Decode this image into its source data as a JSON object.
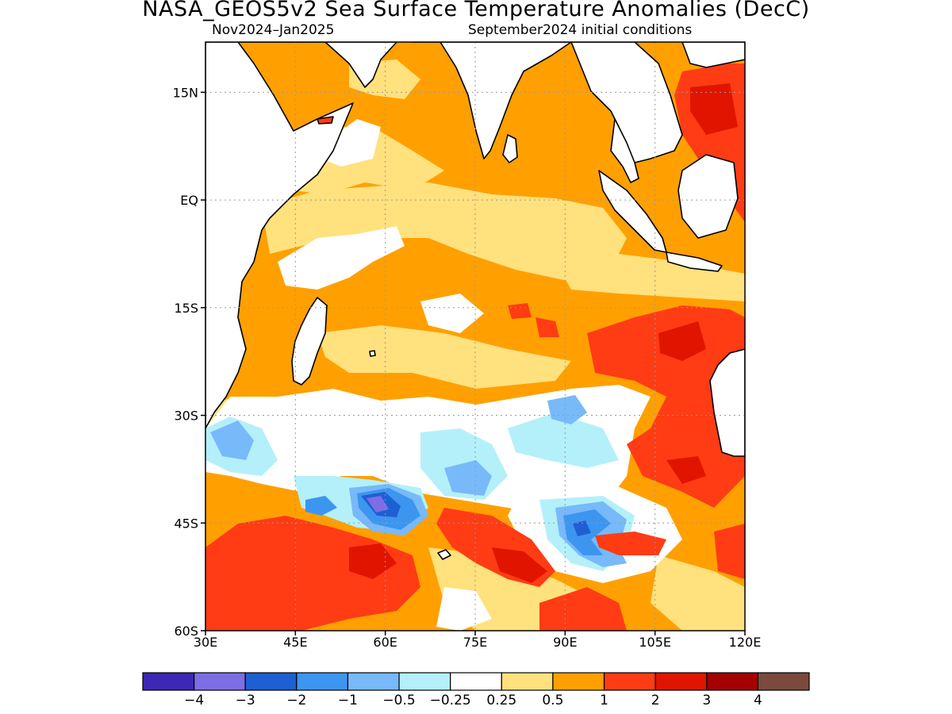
{
  "title": "NASA_GEOS5v2 Sea Surface Temperature Anomalies (DecC)",
  "subtitle_left": "Nov2024–Jan2025",
  "subtitle_right": "September2024 initial conditions",
  "map": {
    "lon_range": [
      30,
      120
    ],
    "lat_range": [
      -60,
      22
    ],
    "x_ticks": [
      {
        "lon": 30,
        "label": "30E"
      },
      {
        "lon": 45,
        "label": "45E"
      },
      {
        "lon": 60,
        "label": "60E"
      },
      {
        "lon": 75,
        "label": "75E"
      },
      {
        "lon": 90,
        "label": "90E"
      },
      {
        "lon": 105,
        "label": "105E"
      },
      {
        "lon": 120,
        "label": "120E"
      }
    ],
    "y_ticks": [
      {
        "lat": 15,
        "label": "15N"
      },
      {
        "lat": 0,
        "label": "EQ"
      },
      {
        "lat": -15,
        "label": "15S"
      },
      {
        "lat": -30,
        "label": "30S"
      },
      {
        "lat": -45,
        "label": "45S"
      },
      {
        "lat": -60,
        "label": "60S"
      }
    ],
    "grid": true,
    "background_level_color": "#ffa000"
  },
  "legend": {
    "colors": [
      "#3c28b4",
      "#7d6ee6",
      "#1e5fd2",
      "#3c96f0",
      "#78b9fa",
      "#b4f0fa",
      "#ffffff",
      "#ffe17d",
      "#ffa000",
      "#ff3c14",
      "#e11400",
      "#a50000",
      "#7a4b3c"
    ],
    "labels": [
      "-4",
      "-3",
      "-2",
      "-1",
      "-0.5",
      "-0.25",
      "0.25",
      "0.5",
      "1",
      "2",
      "3",
      "4"
    ]
  }
}
